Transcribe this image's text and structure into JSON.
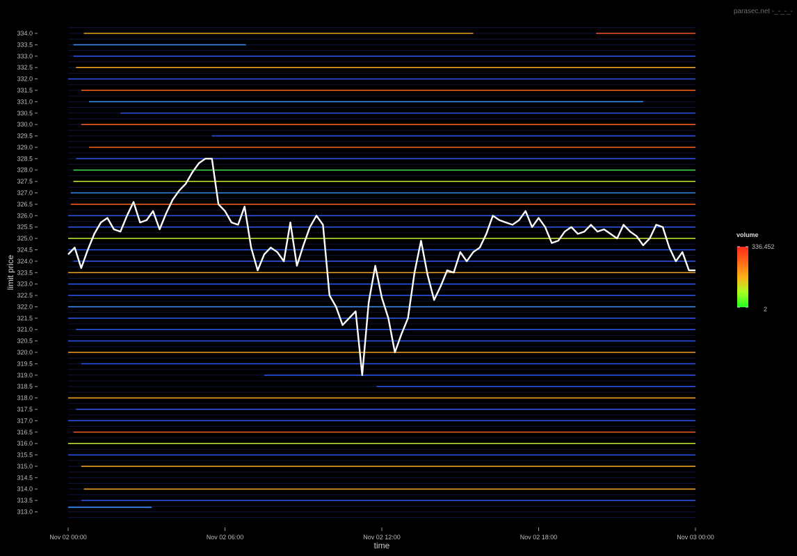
{
  "watermark": "parasec.net -_-_-_-",
  "chart_data": {
    "type": "heatmap",
    "title": "",
    "xlabel": "time",
    "ylabel": "limit price",
    "x_ticks": [
      "Nov 02 00:00",
      "Nov 02 06:00",
      "Nov 02 12:00",
      "Nov 02 18:00",
      "Nov 03 00:00"
    ],
    "x_range_hours": [
      0,
      24
    ],
    "ylim": [
      312.5,
      334.3
    ],
    "y_ticks": [
      313.0,
      313.5,
      314.0,
      314.5,
      315.0,
      315.5,
      316.0,
      316.5,
      317.0,
      317.5,
      318.0,
      318.5,
      319.0,
      319.5,
      320.0,
      320.5,
      321.0,
      321.5,
      322.0,
      322.5,
      323.0,
      323.5,
      324.0,
      324.5,
      325.0,
      325.5,
      326.0,
      326.5,
      327.0,
      327.5,
      328.0,
      328.5,
      329.0,
      329.5,
      330.0,
      330.5,
      331.0,
      331.5,
      332.0,
      332.5,
      333.0,
      333.5,
      334.0
    ],
    "y_tick_labels": [
      "313.0",
      "313.5",
      "314.0",
      "314.5",
      "315.0",
      "315.5",
      "316.0",
      "316.5",
      "317.0",
      "317.5",
      "318.0",
      "318.5",
      "319.0",
      "319.5",
      "320.0",
      "320.5",
      "321.0",
      "321.5",
      "322.0",
      "322.5",
      "323.0",
      "323.5",
      "324.0",
      "324.5",
      "325.0",
      "325.5",
      "326.0",
      "326.5",
      "327.0",
      "327.5",
      "328.0",
      "328.5",
      "329.0",
      "329.5",
      "330.0",
      "330.5",
      "331.0",
      "331.5",
      "332.0",
      "332.5",
      "333.0",
      "333.5",
      "334.0"
    ],
    "grid": false,
    "legend": {
      "title": "volume",
      "position": "right",
      "max_label": "336.452",
      "min_label": "2",
      "max": 336.452,
      "min": 2,
      "colors": [
        "#ff2a1a",
        "#ff6a1a",
        "#ffb01a",
        "#aaff22",
        "#22ff22"
      ]
    },
    "depth_levels": [
      {
        "price": 334.0,
        "start": 0.6,
        "end": 15.5,
        "volume": 150
      },
      {
        "price": 334.0,
        "start": 20.2,
        "end": 24.0,
        "volume": 260
      },
      {
        "price": 333.5,
        "start": 0.2,
        "end": 6.8,
        "volume": 8
      },
      {
        "price": 333.0,
        "start": 0.2,
        "end": 24.0,
        "volume": 5
      },
      {
        "price": 332.5,
        "start": 0.3,
        "end": 24.0,
        "volume": 90
      },
      {
        "price": 332.0,
        "start": 0.0,
        "end": 24.0,
        "volume": 6
      },
      {
        "price": 331.5,
        "start": 0.5,
        "end": 24.0,
        "volume": 170
      },
      {
        "price": 331.0,
        "start": 0.8,
        "end": 22.0,
        "volume": 10
      },
      {
        "price": 330.5,
        "start": 2.0,
        "end": 24.0,
        "volume": 5
      },
      {
        "price": 330.0,
        "start": 0.5,
        "end": 24.0,
        "volume": 200
      },
      {
        "price": 329.5,
        "start": 5.5,
        "end": 24.0,
        "volume": 5
      },
      {
        "price": 329.0,
        "start": 0.8,
        "end": 24.0,
        "volume": 230
      },
      {
        "price": 328.5,
        "start": 0.3,
        "end": 24.0,
        "volume": 6
      },
      {
        "price": 328.0,
        "start": 0.2,
        "end": 24.0,
        "volume": 40
      },
      {
        "price": 327.5,
        "start": 0.2,
        "end": 24.0,
        "volume": 70
      },
      {
        "price": 327.0,
        "start": 0.1,
        "end": 24.0,
        "volume": 8
      },
      {
        "price": 326.5,
        "start": 0.1,
        "end": 24.0,
        "volume": 190
      },
      {
        "price": 326.0,
        "start": 0.0,
        "end": 24.0,
        "volume": 5
      },
      {
        "price": 325.5,
        "start": 0.0,
        "end": 24.0,
        "volume": 6
      },
      {
        "price": 325.0,
        "start": 0.0,
        "end": 24.0,
        "volume": 60
      },
      {
        "price": 324.5,
        "start": 0.0,
        "end": 24.0,
        "volume": 5
      },
      {
        "price": 324.0,
        "start": 0.2,
        "end": 24.0,
        "volume": 7
      },
      {
        "price": 323.5,
        "start": 0.0,
        "end": 24.0,
        "volume": 120
      },
      {
        "price": 323.0,
        "start": 0.0,
        "end": 24.0,
        "volume": 6
      },
      {
        "price": 322.5,
        "start": 0.0,
        "end": 24.0,
        "volume": 5
      },
      {
        "price": 322.0,
        "start": 0.0,
        "end": 24.0,
        "volume": 8
      },
      {
        "price": 321.5,
        "start": 0.0,
        "end": 24.0,
        "volume": 5
      },
      {
        "price": 321.0,
        "start": 0.3,
        "end": 24.0,
        "volume": 6
      },
      {
        "price": 320.5,
        "start": 0.0,
        "end": 24.0,
        "volume": 5
      },
      {
        "price": 320.0,
        "start": 0.0,
        "end": 24.0,
        "volume": 130
      },
      {
        "price": 319.5,
        "start": 0.5,
        "end": 24.0,
        "volume": 5
      },
      {
        "price": 319.0,
        "start": 7.5,
        "end": 24.0,
        "volume": 6
      },
      {
        "price": 318.5,
        "start": 11.8,
        "end": 24.0,
        "volume": 5
      },
      {
        "price": 318.0,
        "start": 0.0,
        "end": 24.0,
        "volume": 150
      },
      {
        "price": 317.5,
        "start": 0.3,
        "end": 24.0,
        "volume": 5
      },
      {
        "price": 317.0,
        "start": 0.0,
        "end": 24.0,
        "volume": 7
      },
      {
        "price": 316.5,
        "start": 0.2,
        "end": 24.0,
        "volume": 200
      },
      {
        "price": 316.0,
        "start": 0.0,
        "end": 24.0,
        "volume": 80
      },
      {
        "price": 315.5,
        "start": 0.0,
        "end": 24.0,
        "volume": 6
      },
      {
        "price": 315.0,
        "start": 0.5,
        "end": 24.0,
        "volume": 90
      },
      {
        "price": 314.0,
        "start": 0.6,
        "end": 24.0,
        "volume": 150
      },
      {
        "price": 313.5,
        "start": 0.5,
        "end": 24.0,
        "volume": 5
      },
      {
        "price": 313.2,
        "start": 0.0,
        "end": 3.2,
        "volume": 8
      }
    ],
    "series": [
      {
        "x": [
          0.0,
          0.25,
          0.5,
          0.75,
          1.0,
          1.25,
          1.5,
          1.75,
          2.0,
          2.25,
          2.5,
          2.75,
          3.0,
          3.25,
          3.5,
          3.75,
          4.0,
          4.25,
          4.5,
          4.75,
          5.0,
          5.25,
          5.5,
          5.75,
          6.0,
          6.25,
          6.5,
          6.75,
          7.0,
          7.25,
          7.5,
          7.75,
          8.0,
          8.25,
          8.5,
          8.75,
          9.0,
          9.25,
          9.5,
          9.75,
          10.0,
          10.25,
          10.5,
          10.75,
          11.0,
          11.25,
          11.5,
          11.75,
          12.0,
          12.25,
          12.5,
          12.75,
          13.0,
          13.25,
          13.5,
          13.75,
          14.0,
          14.25,
          14.5,
          14.75,
          15.0,
          15.25,
          15.5,
          15.75,
          16.0,
          16.25,
          16.5,
          16.75,
          17.0,
          17.25,
          17.5,
          17.75,
          18.0,
          18.25,
          18.5,
          18.75,
          19.0,
          19.25,
          19.5,
          19.75,
          20.0,
          20.25,
          20.5,
          20.75,
          21.0,
          21.25,
          21.5,
          21.75,
          22.0,
          22.25,
          22.5,
          22.75,
          23.0,
          23.25,
          23.5,
          23.75,
          24.0
        ],
        "values": [
          324.3,
          324.6,
          323.7,
          324.5,
          325.2,
          325.7,
          325.9,
          325.4,
          325.3,
          326.0,
          326.6,
          325.7,
          325.8,
          326.2,
          325.4,
          326.1,
          326.7,
          327.1,
          327.4,
          327.9,
          328.3,
          328.5,
          328.5,
          326.5,
          326.2,
          325.7,
          325.6,
          326.4,
          324.6,
          323.6,
          324.3,
          324.6,
          324.4,
          324.0,
          325.7,
          323.8,
          324.7,
          325.5,
          326.0,
          325.6,
          322.5,
          322.0,
          321.2,
          321.5,
          321.8,
          319.0,
          322.2,
          323.8,
          322.4,
          321.5,
          320.0,
          320.8,
          321.5,
          323.5,
          324.9,
          323.4,
          322.3,
          322.9,
          323.6,
          323.5,
          324.4,
          324.0,
          324.4,
          324.6,
          325.2,
          326.0,
          325.8,
          325.7,
          325.6,
          325.8,
          326.2,
          325.5,
          325.9,
          325.5,
          324.8,
          324.9,
          325.3,
          325.5,
          325.2,
          325.3,
          325.6,
          325.3,
          325.4,
          325.2,
          325.0,
          325.6,
          325.3,
          325.1,
          324.7,
          325.0,
          325.6,
          325.5,
          324.6,
          324.0,
          324.4,
          323.6,
          323.6
        ]
      }
    ]
  }
}
